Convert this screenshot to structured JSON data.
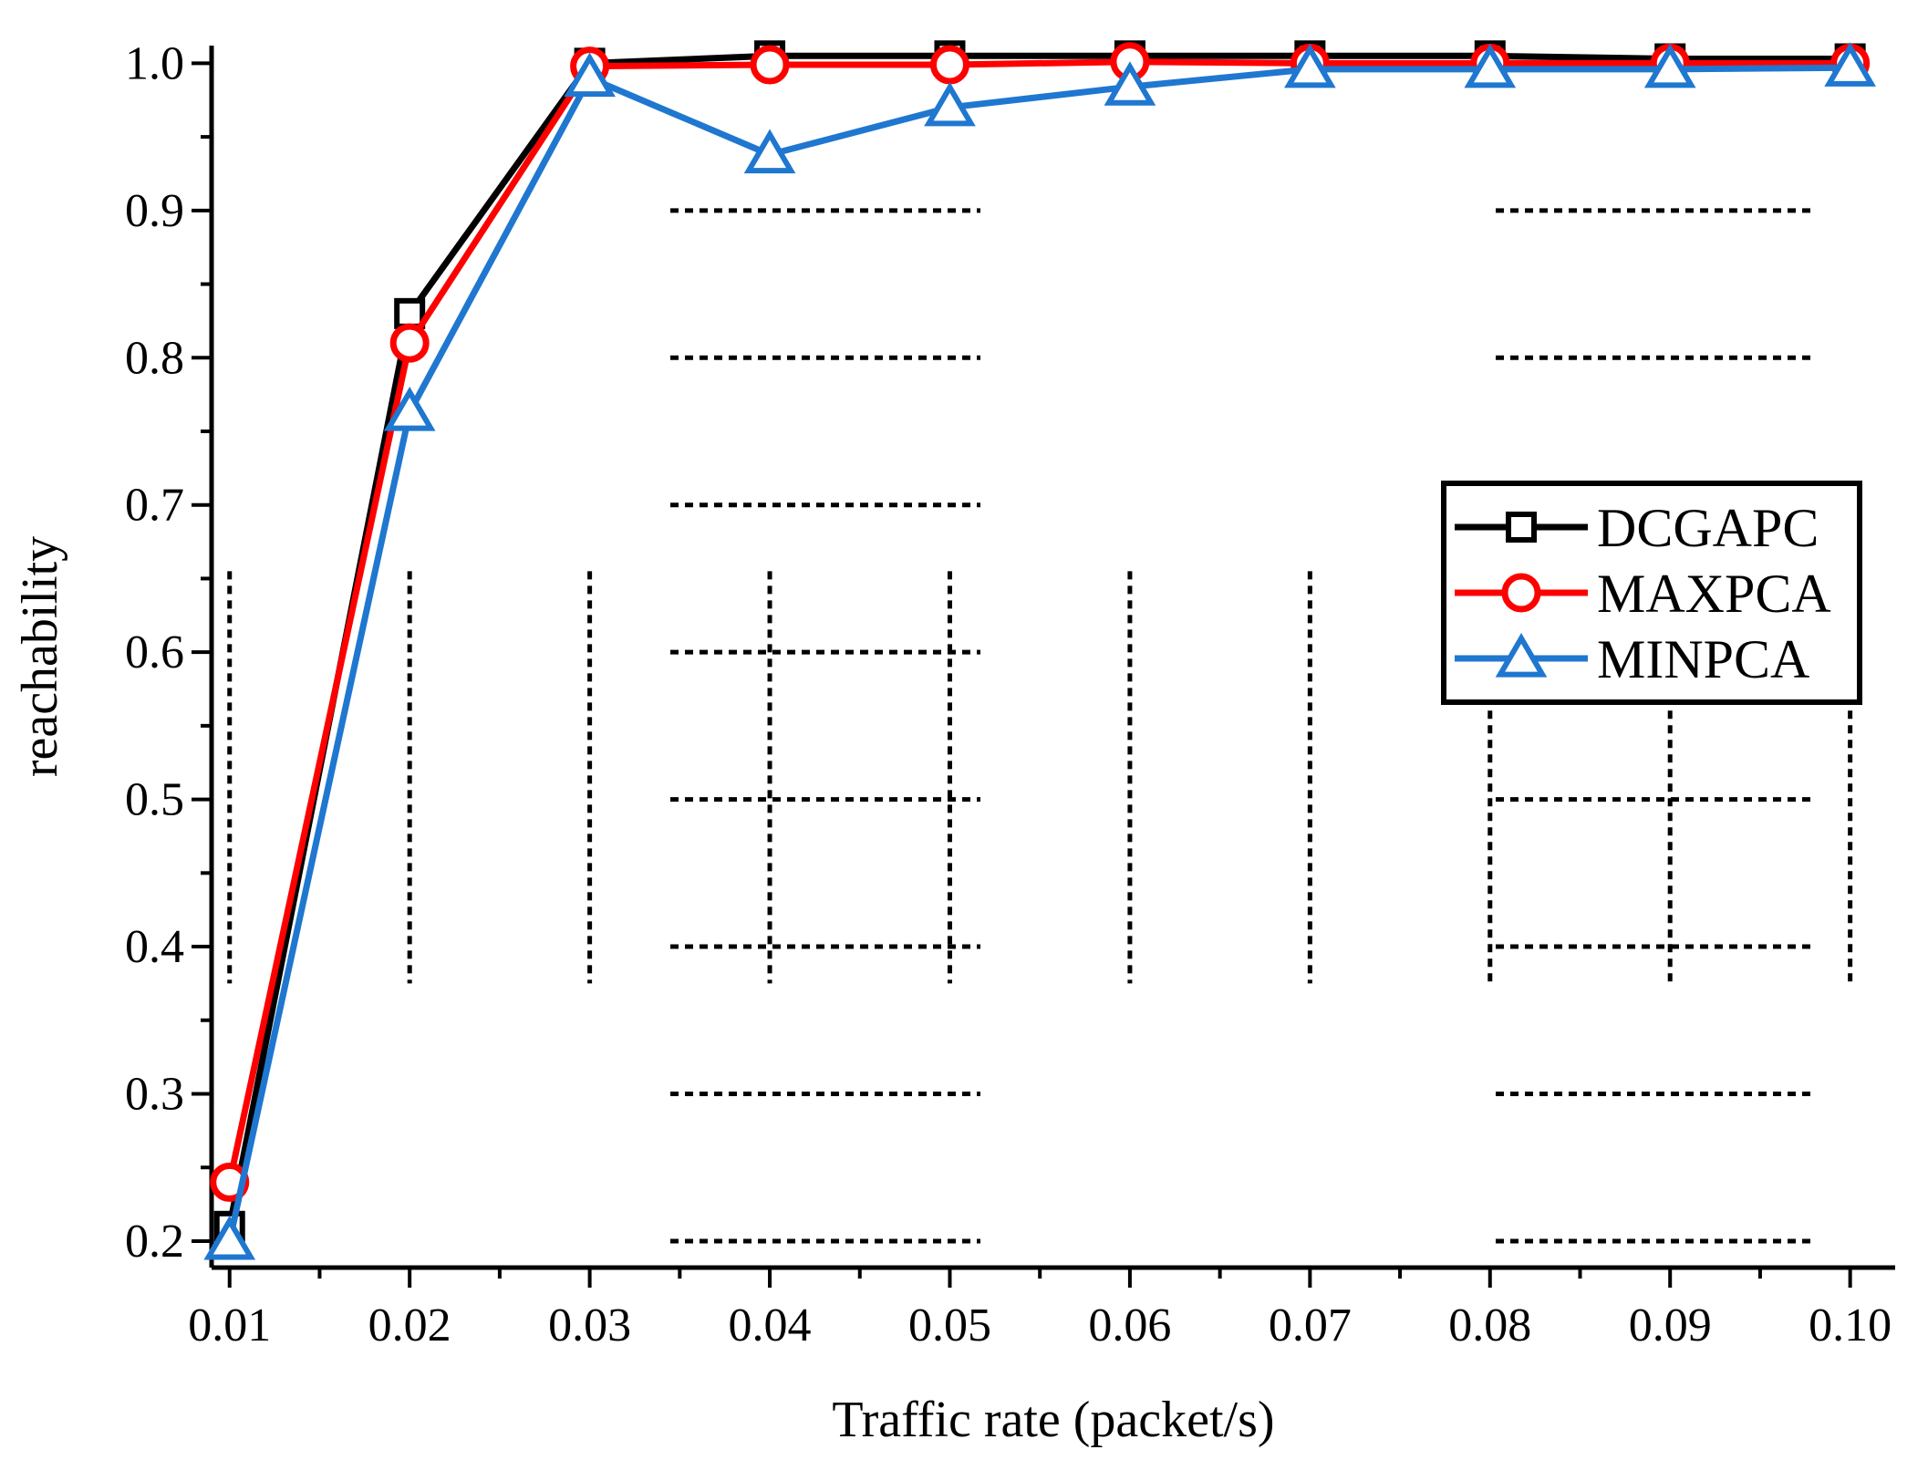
{
  "chart_data": {
    "type": "line",
    "title": "",
    "xlabel": "Traffic rate (packet/s)",
    "ylabel": "reachability",
    "x": [
      0.01,
      0.02,
      0.03,
      0.04,
      0.05,
      0.06,
      0.07,
      0.08,
      0.09,
      0.1
    ],
    "x_tick_labels": [
      "0.01",
      "0.02",
      "0.03",
      "0.04",
      "0.05",
      "0.06",
      "0.07",
      "0.08",
      "0.09",
      "0.10"
    ],
    "y_tick_labels": [
      "0.2",
      "0.3",
      "0.4",
      "0.5",
      "0.6",
      "0.7",
      "0.8",
      "0.9",
      "1.0"
    ],
    "y_ticks": [
      0.2,
      0.3,
      0.4,
      0.5,
      0.6,
      0.7,
      0.8,
      0.9,
      1.0
    ],
    "xlim": [
      0.009,
      0.1025
    ],
    "ylim": [
      0.182,
      1.012
    ],
    "grid": false,
    "legend_position": "right",
    "series": [
      {
        "name": "DCGAPC",
        "color": "#000000",
        "marker": "square",
        "values": [
          0.21,
          0.83,
          1.0,
          1.005,
          1.005,
          1.005,
          1.005,
          1.005,
          1.003,
          1.003
        ]
      },
      {
        "name": "MAXPCA",
        "color": "#ff0000",
        "marker": "circle",
        "values": [
          0.24,
          0.81,
          0.998,
          0.999,
          0.999,
          1.001,
          1.0,
          1.0,
          1.0,
          1.0
        ]
      },
      {
        "name": "MINPCA",
        "color": "#1f77d0",
        "marker": "triangle",
        "values": [
          0.2,
          0.763,
          0.99,
          0.938,
          0.97,
          0.984,
          0.996,
          0.996,
          0.996,
          0.997
        ]
      }
    ]
  }
}
